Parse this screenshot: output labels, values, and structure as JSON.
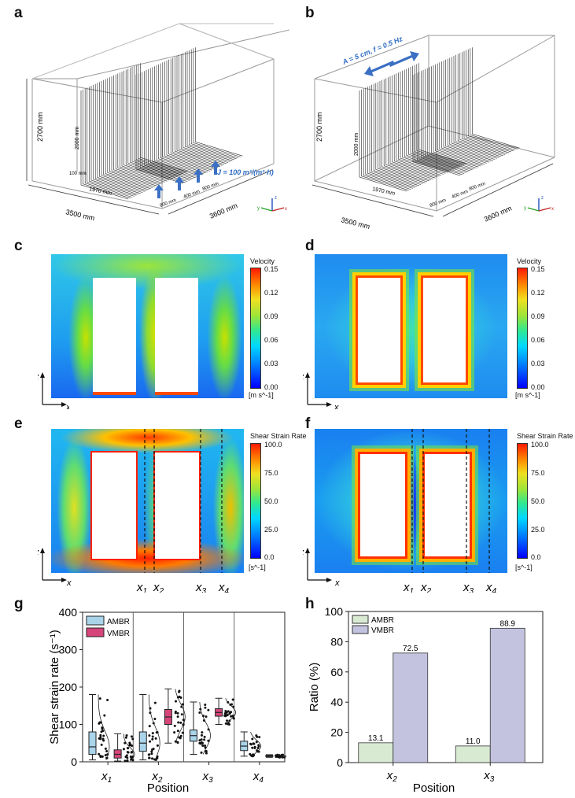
{
  "panel_labels": {
    "a": "a",
    "b": "b",
    "c": "c",
    "d": "d",
    "e": "e",
    "f": "f",
    "g": "g",
    "h": "h"
  },
  "panel_a": {
    "dim_height": "2700 mm",
    "dim_width": "3500 mm",
    "dim_depth": "3600 mm",
    "module_height": "2000 mm",
    "module_length": "1970 mm",
    "gap_label": "100 mm",
    "spacing_800a": "800 mm",
    "spacing_400": "400 mm",
    "spacing_800b": "800 mm",
    "flux_label": "J = 100 m³/(m²·h)"
  },
  "panel_b": {
    "dim_height": "2700 mm",
    "dim_width": "3500 mm",
    "dim_depth": "3600 mm",
    "module_height": "2000 mm",
    "module_length": "1970 mm",
    "spacing_800a": "800 mm",
    "spacing_400": "400 mm",
    "spacing_800b": "800 mm",
    "vibration_label": "A = 5 cm, f = 0.5 Hz"
  },
  "axes_labels": {
    "z": "z",
    "x": "x",
    "y": "y"
  },
  "velocity_bar": {
    "title": "Velocity",
    "ticks": [
      "0.15",
      "0.12",
      "0.09",
      "0.06",
      "0.03",
      "0.00"
    ],
    "unit": "[m s^-1]"
  },
  "shear_bar": {
    "title": "Shear Strain Rate",
    "ticks": [
      "100.0",
      "75.0",
      "50.0",
      "25.0",
      "0.0"
    ],
    "unit": "[s^-1]"
  },
  "positions": {
    "x1": "1",
    "x2": "2",
    "x3": "3",
    "x4": "4",
    "x": "x"
  },
  "colors": {
    "ambr": "#a9d4ea",
    "vmbr": "#d6457a",
    "ambr_h": "#d9ead3",
    "vmbr_h": "#c3c3e0"
  },
  "chart_data": [
    {
      "panel": "g",
      "type": "box",
      "xlabel": "Position",
      "ylabel": "Shear strain rate (s⁻¹)",
      "ylim": [
        0,
        400
      ],
      "yticks": [
        0,
        100,
        200,
        300,
        400
      ],
      "categories": [
        "x1",
        "x2",
        "x3",
        "x4"
      ],
      "legend": "top-left",
      "series": [
        {
          "name": "AMBR",
          "boxes": [
            {
              "q1": 20,
              "median": 40,
              "q3": 80,
              "whisker_low": 5,
              "whisker_high": 180
            },
            {
              "q1": 28,
              "median": 50,
              "q3": 80,
              "whisker_low": 5,
              "whisker_high": 180
            },
            {
              "q1": 55,
              "median": 70,
              "q3": 85,
              "whisker_low": 20,
              "whisker_high": 160
            },
            {
              "q1": 30,
              "median": 42,
              "q3": 55,
              "whisker_low": 15,
              "whisker_high": 80
            }
          ]
        },
        {
          "name": "VMBR",
          "boxes": [
            {
              "q1": 10,
              "median": 20,
              "q3": 32,
              "whisker_low": 2,
              "whisker_high": 75
            },
            {
              "q1": 100,
              "median": 120,
              "q3": 140,
              "whisker_low": 50,
              "whisker_high": 195
            },
            {
              "q1": 122,
              "median": 132,
              "q3": 142,
              "whisker_low": 100,
              "whisker_high": 170
            },
            {
              "q1": 14,
              "median": 15,
              "q3": 17,
              "whisker_low": 12,
              "whisker_high": 19
            }
          ]
        }
      ]
    },
    {
      "panel": "h",
      "type": "bar",
      "xlabel": "Position",
      "ylabel": "Ratio (%)",
      "ylim": [
        0,
        100
      ],
      "yticks": [
        0,
        20,
        40,
        60,
        80,
        100
      ],
      "categories": [
        "x2",
        "x3"
      ],
      "legend": "top-left",
      "series": [
        {
          "name": "AMBR",
          "values": [
            13.1,
            11.0
          ]
        },
        {
          "name": "VMBR",
          "values": [
            72.5,
            88.9
          ]
        }
      ],
      "value_labels": [
        [
          "13.1",
          "11.0"
        ],
        [
          "72.5",
          "88.9"
        ]
      ]
    }
  ]
}
